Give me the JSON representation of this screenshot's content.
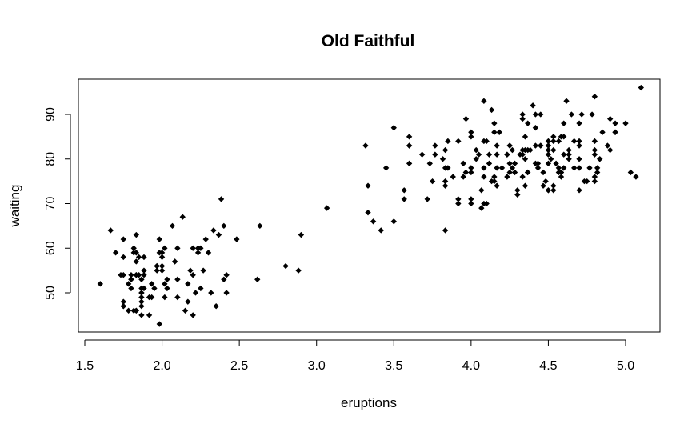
{
  "chart_data": {
    "type": "scatter",
    "title": "Old Faithful",
    "xlabel": "eruptions",
    "ylabel": "waiting",
    "xlim": [
      1.5,
      5.0
    ],
    "ylim": [
      43,
      96
    ],
    "xticks": [
      1.5,
      2.0,
      2.5,
      3.0,
      3.5,
      4.0,
      4.5,
      5.0
    ],
    "xtick_labels": [
      "1.5",
      "2.0",
      "2.5",
      "3.0",
      "3.5",
      "4.0",
      "4.5",
      "5.0"
    ],
    "yticks": [
      50,
      60,
      70,
      80,
      90
    ],
    "ytick_labels": [
      "50",
      "60",
      "70",
      "80",
      "90"
    ],
    "grid": false,
    "legend": "none",
    "marker_color": "#000000",
    "x": [
      3.6,
      1.8,
      3.333,
      2.283,
      4.533,
      2.883,
      4.7,
      3.6,
      1.95,
      4.35,
      1.833,
      3.917,
      4.2,
      1.75,
      4.7,
      2.167,
      1.75,
      4.8,
      1.6,
      4.25,
      1.8,
      1.75,
      3.45,
      3.067,
      4.533,
      3.6,
      1.967,
      4.083,
      3.85,
      4.433,
      4.3,
      4.467,
      3.367,
      4.033,
      3.833,
      2.017,
      1.867,
      4.833,
      1.833,
      4.783,
      4.35,
      1.883,
      4.567,
      1.75,
      4.533,
      3.317,
      3.833,
      2.1,
      4.633,
      2.0,
      4.8,
      4.716,
      1.833,
      4.833,
      1.733,
      4.883,
      3.717,
      1.667,
      4.567,
      4.317,
      2.233,
      4.5,
      1.75,
      4.8,
      1.817,
      4.4,
      4.167,
      4.7,
      2.067,
      4.7,
      4.033,
      1.967,
      4.5,
      4.0,
      1.983,
      5.067,
      2.017,
      4.567,
      3.883,
      3.6,
      4.133,
      4.333,
      4.1,
      2.633,
      4.067,
      4.933,
      3.95,
      4.517,
      2.167,
      4.0,
      2.2,
      4.333,
      1.867,
      4.817,
      1.833,
      4.3,
      4.667,
      3.75,
      1.867,
      4.9,
      2.483,
      4.367,
      2.1,
      4.5,
      4.05,
      1.867,
      4.7,
      1.783,
      4.85,
      3.683,
      4.733,
      2.3,
      4.9,
      4.417,
      1.7,
      4.633,
      2.317,
      4.6,
      1.817,
      4.417,
      2.617,
      4.067,
      4.25,
      1.967,
      4.6,
      3.767,
      1.917,
      4.5,
      2.267,
      4.65,
      1.867,
      4.167,
      2.8,
      4.333,
      1.833,
      4.383,
      1.883,
      4.933,
      2.033,
      3.733,
      4.233,
      2.233,
      4.533,
      4.817,
      4.333,
      1.983,
      4.633,
      2.017,
      5.1,
      1.8,
      5.033,
      4.0,
      2.4,
      4.6,
      3.567,
      4.0,
      4.5,
      4.083,
      1.8,
      3.967,
      2.2,
      4.15,
      2.0,
      3.833,
      3.5,
      4.583,
      2.367,
      5.0,
      1.933,
      4.617,
      1.917,
      2.083,
      4.583,
      3.333,
      4.167,
      4.333,
      4.5,
      2.417,
      4.0,
      4.167,
      1.883,
      4.583,
      4.25,
      3.767,
      2.033,
      4.433,
      4.083,
      1.833,
      4.417,
      2.183,
      4.8,
      1.833,
      4.8,
      4.1,
      3.966,
      4.233,
      3.5,
      4.366,
      2.25,
      4.667,
      2.1,
      4.35,
      4.133,
      1.867,
      4.6,
      1.783,
      4.367,
      3.85,
      1.933,
      4.5,
      2.383,
      4.7,
      1.867,
      3.833,
      3.417,
      4.233,
      2.4,
      4.8,
      2.0,
      4.15,
      1.867,
      4.267,
      1.75,
      4.483,
      4.0,
      4.117,
      4.083,
      4.267,
      3.917,
      4.55,
      4.083,
      2.417,
      4.183,
      2.217,
      4.45,
      1.883,
      1.85,
      4.283,
      3.95,
      2.333,
      4.15,
      2.35,
      4.933,
      2.9,
      4.583,
      3.833,
      2.083,
      4.367,
      2.133,
      4.35,
      2.2,
      4.45,
      3.567,
      4.5,
      4.15,
      3.817,
      3.917,
      4.45,
      2.0,
      4.283,
      4.767,
      4.533,
      1.85,
      4.25,
      1.983,
      2.25,
      4.75,
      4.117,
      2.15,
      4.417,
      1.817,
      4.467
    ],
    "y": [
      79,
      54,
      74,
      62,
      85,
      55,
      88,
      85,
      51,
      85,
      54,
      84,
      78,
      47,
      83,
      52,
      62,
      84,
      52,
      79,
      51,
      47,
      78,
      69,
      74,
      83,
      55,
      76,
      78,
      79,
      73,
      77,
      66,
      80,
      74,
      52,
      48,
      80,
      59,
      90,
      80,
      58,
      84,
      58,
      73,
      83,
      64,
      53,
      82,
      59,
      75,
      90,
      54,
      80,
      54,
      83,
      71,
      64,
      77,
      81,
      59,
      84,
      48,
      82,
      60,
      92,
      78,
      78,
      65,
      73,
      82,
      56,
      79,
      71,
      62,
      76,
      60,
      78,
      76,
      83,
      75,
      82,
      70,
      65,
      73,
      88,
      76,
      80,
      48,
      86,
      60,
      90,
      50,
      78,
      63,
      72,
      84,
      75,
      51,
      82,
      62,
      88,
      49,
      83,
      81,
      47,
      84,
      52,
      86,
      81,
      75,
      59,
      89,
      79,
      59,
      81,
      50,
      85,
      59,
      87,
      53,
      69,
      77,
      56,
      88,
      81,
      45,
      82,
      55,
      90,
      45,
      83,
      56,
      89,
      46,
      82,
      51,
      86,
      53,
      79,
      81,
      60,
      82,
      77,
      76,
      59,
      80,
      49,
      96,
      53,
      77,
      77,
      65,
      81,
      71,
      70,
      81,
      93,
      53,
      89,
      45,
      86,
      58,
      78,
      66,
      76,
      63,
      88,
      52,
      93,
      49,
      57,
      77,
      68,
      81,
      81,
      73,
      50,
      85,
      74,
      55,
      77,
      83,
      83,
      51,
      78,
      84,
      46,
      83,
      55,
      81,
      57,
      76,
      84,
      77,
      81,
      87,
      77,
      51,
      78,
      60,
      82,
      91,
      53,
      78,
      46,
      77,
      84,
      49,
      83,
      71,
      80,
      49,
      75,
      64,
      76,
      53,
      94,
      55,
      76,
      50,
      82,
      54,
      75,
      78,
      79,
      78,
      78,
      70,
      79,
      70,
      54,
      86,
      50,
      90,
      54,
      54,
      77,
      79,
      64,
      75,
      47,
      86,
      63,
      85,
      82,
      57,
      82,
      67,
      74,
      54,
      83,
      73,
      73,
      88,
      80,
      71,
      83,
      56,
      79,
      78,
      84,
      58,
      83,
      43,
      60,
      75,
      81,
      46,
      90,
      46,
      74
    ]
  }
}
